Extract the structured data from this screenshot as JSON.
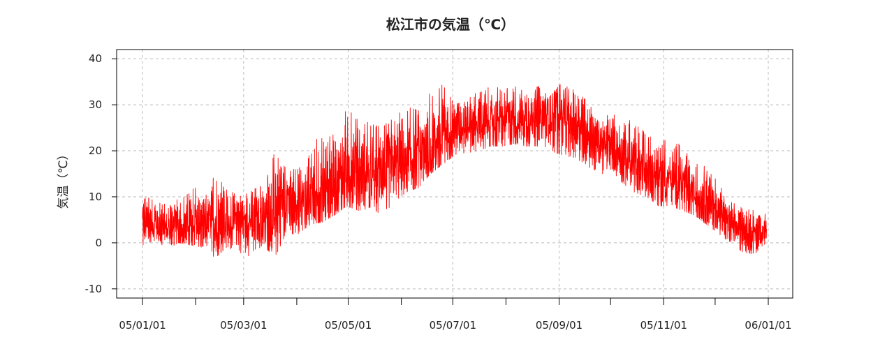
{
  "chart_data": {
    "type": "line",
    "title": "松江市の気温（℃）",
    "xlabel": "",
    "ylabel": "気温（℃）",
    "series_color": "#ff0000",
    "grid": true,
    "grid_color": "#bbbbbb",
    "ylim": [
      -12,
      42
    ],
    "yticks": [
      -10,
      0,
      10,
      20,
      30,
      40
    ],
    "xlim": [
      "2005-01-01",
      "2006-01-01"
    ],
    "xtick_labels": [
      "05/01/01",
      "05/03/01",
      "05/05/01",
      "05/07/01",
      "05/09/01",
      "05/11/01",
      "06/01/01"
    ],
    "xtick_dates": [
      "2005-01-01",
      "2005-03-01",
      "2005-05-01",
      "2005-07-01",
      "2005-09-01",
      "2005-11-01",
      "2006-01-01"
    ],
    "minor_tick_dates": [
      "2005-02-01",
      "2005-04-01",
      "2005-06-01",
      "2005-08-01",
      "2005-10-01",
      "2005-12-01"
    ],
    "series": [
      {
        "x": [
          "2005-01-01",
          "2005-01-08",
          "2005-01-15",
          "2005-01-22",
          "2005-01-29",
          "2005-02-05",
          "2005-02-12",
          "2005-02-19",
          "2005-02-26",
          "2005-03-05",
          "2005-03-12",
          "2005-03-19",
          "2005-03-26",
          "2005-04-02",
          "2005-04-09",
          "2005-04-16",
          "2005-04-23",
          "2005-04-30",
          "2005-05-07",
          "2005-05-14",
          "2005-05-21",
          "2005-05-28",
          "2005-06-04",
          "2005-06-11",
          "2005-06-18",
          "2005-06-25",
          "2005-07-02",
          "2005-07-09",
          "2005-07-16",
          "2005-07-23",
          "2005-07-30",
          "2005-08-06",
          "2005-08-13",
          "2005-08-20",
          "2005-08-27",
          "2005-09-03",
          "2005-09-10",
          "2005-09-17",
          "2005-09-24",
          "2005-10-01",
          "2005-10-08",
          "2005-10-15",
          "2005-10-22",
          "2005-10-29",
          "2005-11-05",
          "2005-11-12",
          "2005-11-19",
          "2005-11-26",
          "2005-12-03",
          "2005-12-10",
          "2005-12-17",
          "2005-12-24",
          "2005-12-31"
        ],
        "min": [
          -0.5,
          0.5,
          -1.5,
          0,
          -0.5,
          -1,
          -3.5,
          -1,
          -2,
          -3,
          -0.5,
          -3,
          1,
          2,
          4,
          4.5,
          6,
          8,
          7,
          7.5,
          6,
          9,
          11,
          12,
          15,
          17,
          19,
          19.5,
          20,
          21,
          21,
          21.5,
          21,
          21,
          20,
          19,
          18.5,
          17,
          14.5,
          16,
          13,
          11,
          10,
          8,
          8,
          7,
          6,
          4,
          2,
          0,
          -2,
          -2.5,
          0
        ],
        "max": [
          11,
          9,
          9,
          10,
          12,
          13,
          15,
          12,
          10,
          11,
          13,
          19.5,
          16,
          16,
          20,
          25,
          24,
          30,
          27,
          26,
          25,
          28,
          30,
          30,
          33,
          35,
          30,
          31,
          33,
          34,
          34,
          34,
          33,
          34,
          32,
          35,
          33,
          31,
          27,
          29,
          26,
          27,
          24,
          23,
          22,
          22,
          18,
          17,
          13,
          9,
          7.5,
          7,
          6.5
        ],
        "mean": [
          4,
          4,
          3,
          3.5,
          4.5,
          4,
          4.5,
          4.5,
          5,
          5,
          5,
          7,
          8,
          9,
          10,
          11,
          13,
          15,
          15,
          15,
          16,
          17,
          18,
          19,
          21,
          24,
          25,
          25.5,
          26,
          26,
          26.5,
          27,
          27,
          27,
          27.5,
          27,
          25,
          24,
          22,
          21,
          19,
          17.5,
          15,
          14.5,
          14,
          13,
          10,
          9,
          7,
          4,
          3,
          2.5,
          3
        ]
      }
    ]
  }
}
